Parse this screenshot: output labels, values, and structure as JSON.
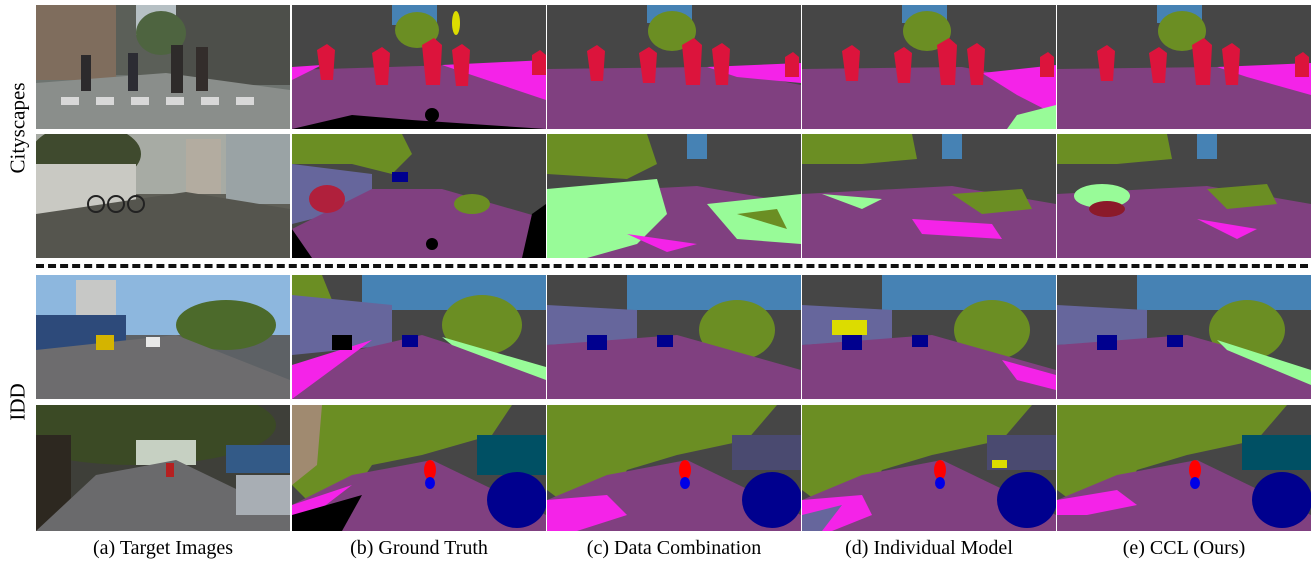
{
  "row_groups": [
    "Cityscapes",
    "IDD"
  ],
  "columns": [
    "(a) Target Images",
    "(b) Ground Truth",
    "(c) Data Combination",
    "(d) Individual Model",
    "(e) CCL (Ours)"
  ],
  "colors": {
    "road": "#804080",
    "sidewalk": "#f423e8",
    "building": "#464646",
    "vegetation": "#6b8e23",
    "sky": "#4682b4",
    "person": "#dc143c",
    "car": "#00008e",
    "terrain": "#98fb98",
    "wall": "#66669c",
    "void": "#000000"
  }
}
